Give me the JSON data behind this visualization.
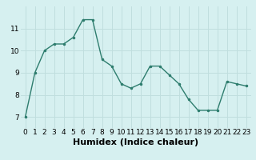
{
  "x": [
    0,
    1,
    2,
    3,
    4,
    5,
    6,
    7,
    8,
    9,
    10,
    11,
    12,
    13,
    14,
    15,
    16,
    17,
    18,
    19,
    20,
    21,
    22,
    23
  ],
  "y": [
    7.0,
    9.0,
    10.0,
    10.3,
    10.3,
    10.6,
    11.4,
    11.4,
    9.6,
    9.3,
    8.5,
    8.3,
    8.5,
    9.3,
    9.3,
    8.9,
    8.5,
    7.8,
    7.3,
    7.3,
    7.3,
    8.6,
    8.5,
    8.4
  ],
  "xlim": [
    -0.5,
    23.5
  ],
  "ylim": [
    6.5,
    12.0
  ],
  "yticks": [
    7,
    8,
    9,
    10,
    11
  ],
  "xticks": [
    0,
    1,
    2,
    3,
    4,
    5,
    6,
    7,
    8,
    9,
    10,
    11,
    12,
    13,
    14,
    15,
    16,
    17,
    18,
    19,
    20,
    21,
    22,
    23
  ],
  "xlabel": "Humidex (Indice chaleur)",
  "line_color": "#2e7d6e",
  "marker_color": "#2e7d6e",
  "bg_color": "#d6f0f0",
  "grid_color": "#c0dede",
  "tick_label_fontsize": 6.5,
  "xlabel_fontsize": 8
}
